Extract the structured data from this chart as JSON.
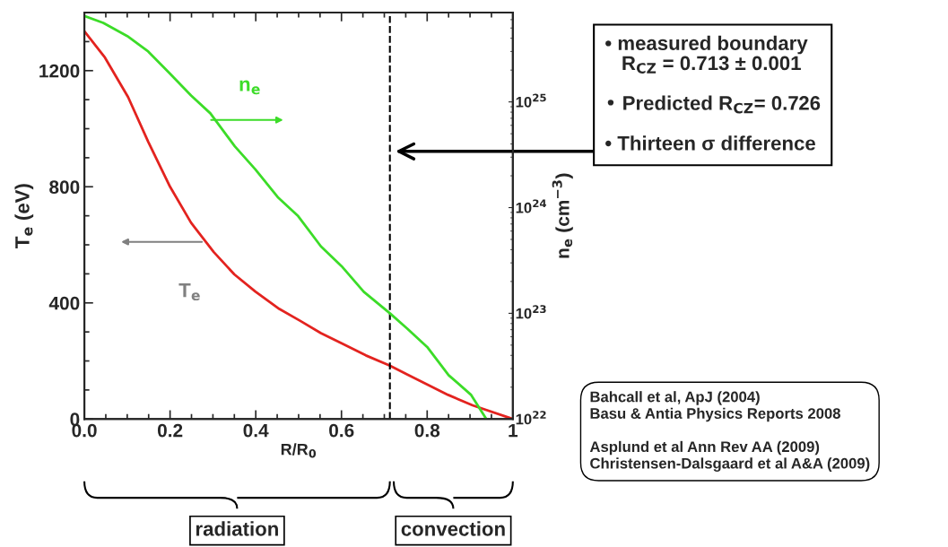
{
  "chart_data": {
    "type": "line",
    "xlabel": "R/R$_{0}$",
    "ylabel": "T$_{e}$ (eV)",
    "y2label": "n$_{e}$ (cm$^{−3}$)",
    "series": [
      {
        "color": "#e3231f",
        "x": [
          0,
          0.048,
          0.102,
          0.149,
          0.2,
          0.249,
          0.302,
          0.35,
          0.399,
          0.455,
          0.504,
          0.552,
          0.6,
          0.657,
          0.713,
          0.753,
          0.8,
          0.849,
          0.906,
          1.0
        ],
        "values": [
          1336,
          1245,
          1109,
          955,
          800,
          676,
          575,
          498,
          439,
          379,
          338,
          296,
          261,
          219,
          184,
          154,
          119,
          83,
          47,
          0
        ]
      },
      {
        "color": "#3cdc28",
        "axis": "y2",
        "x": [
          0,
          0.044,
          0.1,
          0.149,
          0.197,
          0.249,
          0.294,
          0.351,
          0.399,
          0.451,
          0.499,
          0.552,
          0.6,
          0.652,
          0.713,
          0.753,
          0.8,
          0.85,
          0.902,
          0.938
        ],
        "values": [
          6.5e+25,
          5.6e+25,
          4.2e+25,
          3e+25,
          1.9e+25,
          1.15e+25,
          7.8e+24,
          3.8e+24,
          2.3e+24,
          1.26e+24,
          8.3e+23,
          4.3e+23,
          2.8e+23,
          1.6e+23,
          1e+23,
          7.2e+22,
          4.8e+22,
          2.6e+22,
          1.7e+22,
          1e+22
        ]
      }
    ],
    "xlim": [
      0,
      1
    ],
    "ylim": [
      0,
      1400
    ],
    "y2lim": [
      1e+22,
      7e+25
    ],
    "log": "y2",
    "xticks": [
      {
        "value": 0,
        "label": "0.0"
      },
      0.2,
      0.4,
      0.6,
      0.8,
      1
    ],
    "yticks": [
      0,
      400,
      800,
      1200
    ],
    "y2ticks": [
      {
        "value": 1e+22,
        "label": "10$^{22}$"
      },
      {
        "value": 1e+23,
        "label": "10$^{23}$"
      },
      {
        "value": 1e+24,
        "label": "10$^{24}$"
      },
      {
        "value": 1e+25,
        "label": "10$^{25}$"
      }
    ],
    "ref_lines": [
      {
        "axis": "x",
        "value": 0.713,
        "color": "#000000",
        "line_style": "dashed"
      }
    ],
    "annotations": [
      "n$_{e}$",
      "T$_{e}$",
      "• measured boundary\n   R$_{CZ}$ = 0.713 ± 0.001\n\n• Predicted R$_{CZ}$= 0.726\n\n• Thirteen σ difference",
      "Bahcall et al, ApJ (2004)\nBasu & Antia Physics Reports 2008\n\nAsplund et al Ann Rev AA (2009)\nChristensen-Dalsgaard et al A&A (2009)",
      "radiation",
      "convection"
    ]
  }
}
